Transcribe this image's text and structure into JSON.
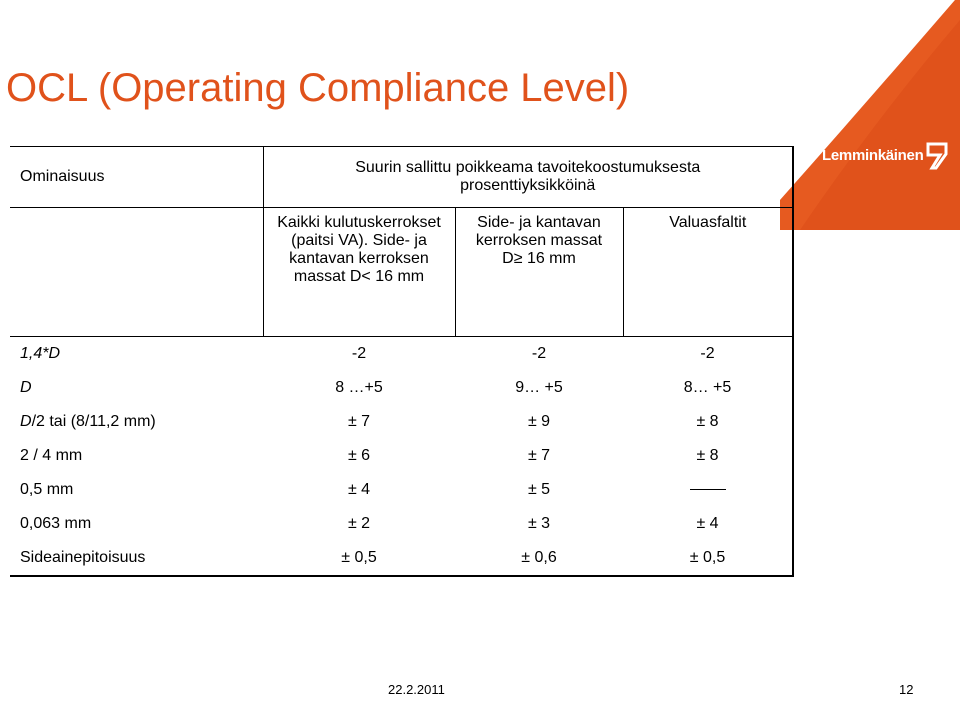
{
  "slide": {
    "title": "OCL (Operating Compliance Level)",
    "footer_date": "22.2.2011",
    "page_number": "12"
  },
  "logo": {
    "text": "Lemminkäinen"
  },
  "colors": {
    "title": "#e0521b",
    "brand": "#e0521b"
  },
  "table": {
    "header": {
      "property": "Ominaisuus",
      "deviation": "Suurin sallittu poikkeama tavoitekoostumuksesta prosenttiyksikköinä"
    },
    "subheaders": [
      "Kaikki kulutuskerrokset (paitsi VA). Side- ja kantavan kerroksen massat D< 16 mm",
      "Side- ja kantavan kerroksen massat D≥ 16 mm",
      "Valuasfaltit"
    ],
    "rows": [
      {
        "prop_italic": "1,4*D",
        "prop_rest": "",
        "values": [
          "-2",
          "-2",
          "-2"
        ]
      },
      {
        "prop_italic": "D",
        "prop_rest": "",
        "values": [
          "8 …+5",
          "9… +5",
          "8… +5"
        ]
      },
      {
        "prop_italic": "D",
        "prop_rest": "/2 tai (8/11,2 mm)",
        "values": [
          "± 7",
          "± 9",
          "± 8"
        ]
      },
      {
        "prop_italic": "",
        "prop_rest": "2 / 4 mm",
        "values": [
          "± 6",
          "± 7",
          "± 8"
        ]
      },
      {
        "prop_italic": "",
        "prop_rest": "0,5 mm",
        "values": [
          "± 4",
          "± 5",
          ""
        ]
      },
      {
        "prop_italic": "",
        "prop_rest": "0,063 mm",
        "values": [
          "± 2",
          "± 3",
          "± 4"
        ]
      },
      {
        "prop_italic": "",
        "prop_rest": "Sideainepitoisuus",
        "values": [
          "± 0,5",
          "± 0,6",
          "± 0,5"
        ]
      }
    ]
  }
}
